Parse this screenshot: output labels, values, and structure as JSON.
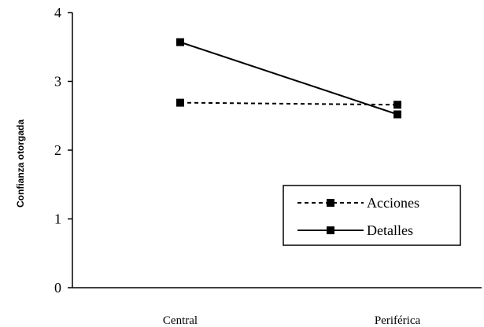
{
  "chart_data": {
    "type": "line",
    "title": "",
    "xlabel": "",
    "ylabel": "Confianza otorgada",
    "categories": [
      "Central",
      "Periférica"
    ],
    "ylim": [
      0,
      4
    ],
    "yticks": [
      "0",
      "1",
      "2",
      "3",
      "4"
    ],
    "grid": false,
    "legend_position": "bottom-right",
    "series": [
      {
        "name": "Acciones",
        "values": [
          2.69,
          2.66
        ],
        "line_style": "dashed",
        "marker": "square",
        "color": "#000000"
      },
      {
        "name": "Detalles",
        "values": [
          3.57,
          2.52
        ],
        "line_style": "solid",
        "marker": "square",
        "color": "#000000"
      }
    ]
  }
}
